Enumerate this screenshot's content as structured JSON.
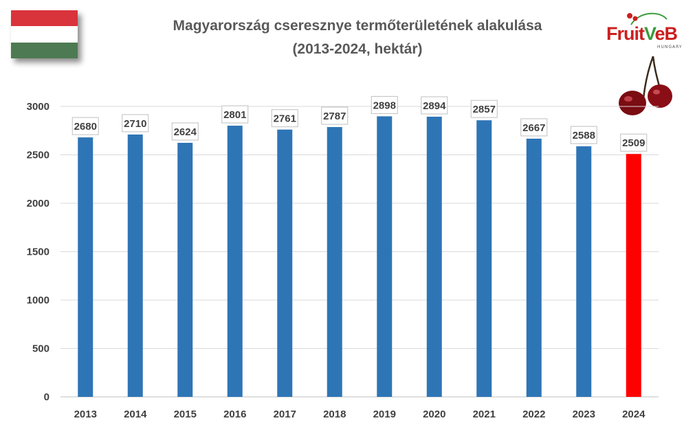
{
  "header": {
    "title_line1": "Magyarország cseresznye termőterületének alakulása",
    "title_line2": "(2013-2024, hektár)"
  },
  "flag": {
    "icon": "hungary-flag-icon",
    "colors": [
      "#d9333c",
      "#ffffff",
      "#4d7a52"
    ]
  },
  "logo": {
    "icon": "fruitveb-cherry-logo",
    "text_main": "Fruit",
    "text_v": "V",
    "text_end": "eB",
    "subtext": "HUNGARY"
  },
  "chart_data": {
    "type": "bar",
    "title": "Magyarország cseresznye termőterületének alakulása (2013-2024, hektár)",
    "categories": [
      "2013",
      "2014",
      "2015",
      "2016",
      "2017",
      "2018",
      "2019",
      "2020",
      "2021",
      "2022",
      "2023",
      "2024"
    ],
    "values": [
      2680,
      2710,
      2624,
      2801,
      2761,
      2787,
      2898,
      2894,
      2857,
      2667,
      2588,
      2509
    ],
    "colors": [
      "#2e75b6",
      "#2e75b6",
      "#2e75b6",
      "#2e75b6",
      "#2e75b6",
      "#2e75b6",
      "#2e75b6",
      "#2e75b6",
      "#2e75b6",
      "#2e75b6",
      "#2e75b6",
      "#ff0000"
    ],
    "ylim": [
      0,
      3000
    ],
    "yticks": [
      0,
      500,
      1000,
      1500,
      2000,
      2500,
      3000
    ],
    "grid": true,
    "data_labels": true,
    "xlabel": "",
    "ylabel": ""
  }
}
